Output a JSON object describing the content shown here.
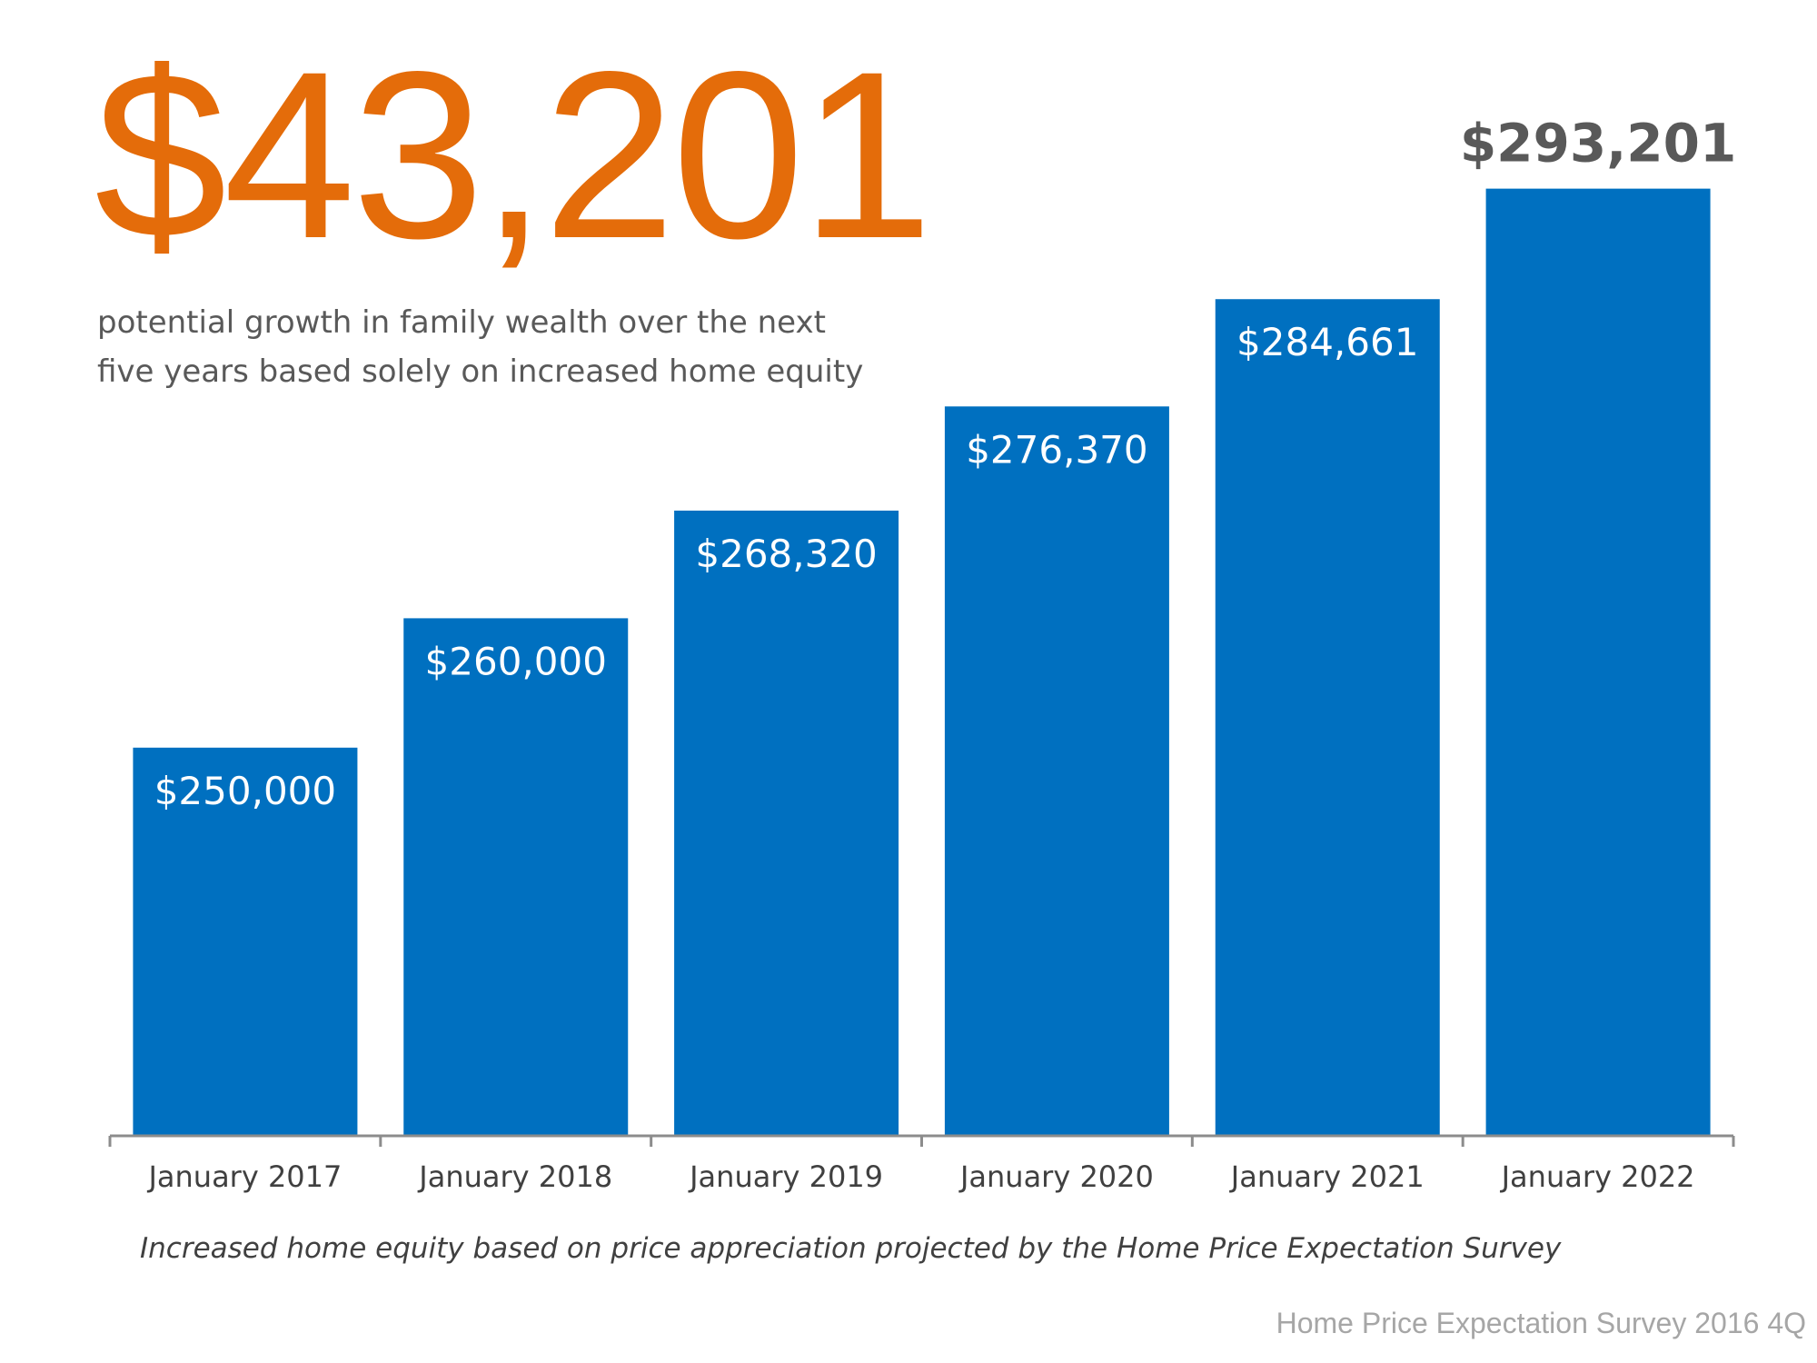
{
  "headline": "$43,201",
  "subtitle_lines": [
    "potential growth in family wealth over the next",
    "five years based solely on increased home equity"
  ],
  "note": "Increased home equity based on price appreciation projected by the Home Price Expectation Survey",
  "source": "Home Price Expectation Survey 2016 4Q",
  "chart_data": {
    "type": "bar",
    "categories": [
      "January 2017",
      "January 2018",
      "January 2019",
      "January 2020",
      "January 2021",
      "January 2022"
    ],
    "values": [
      250000,
      260000,
      268320,
      276370,
      284661,
      293201
    ],
    "data_labels": [
      "$250,000",
      "$260,000",
      "$268,320",
      "$276,370",
      "$284,661",
      "$293,201"
    ],
    "ylim": [
      220000,
      300000
    ],
    "grid": false,
    "bar_color": "#0070C0",
    "headline_color": "#E46C0A",
    "last_label_color": "#595959"
  }
}
